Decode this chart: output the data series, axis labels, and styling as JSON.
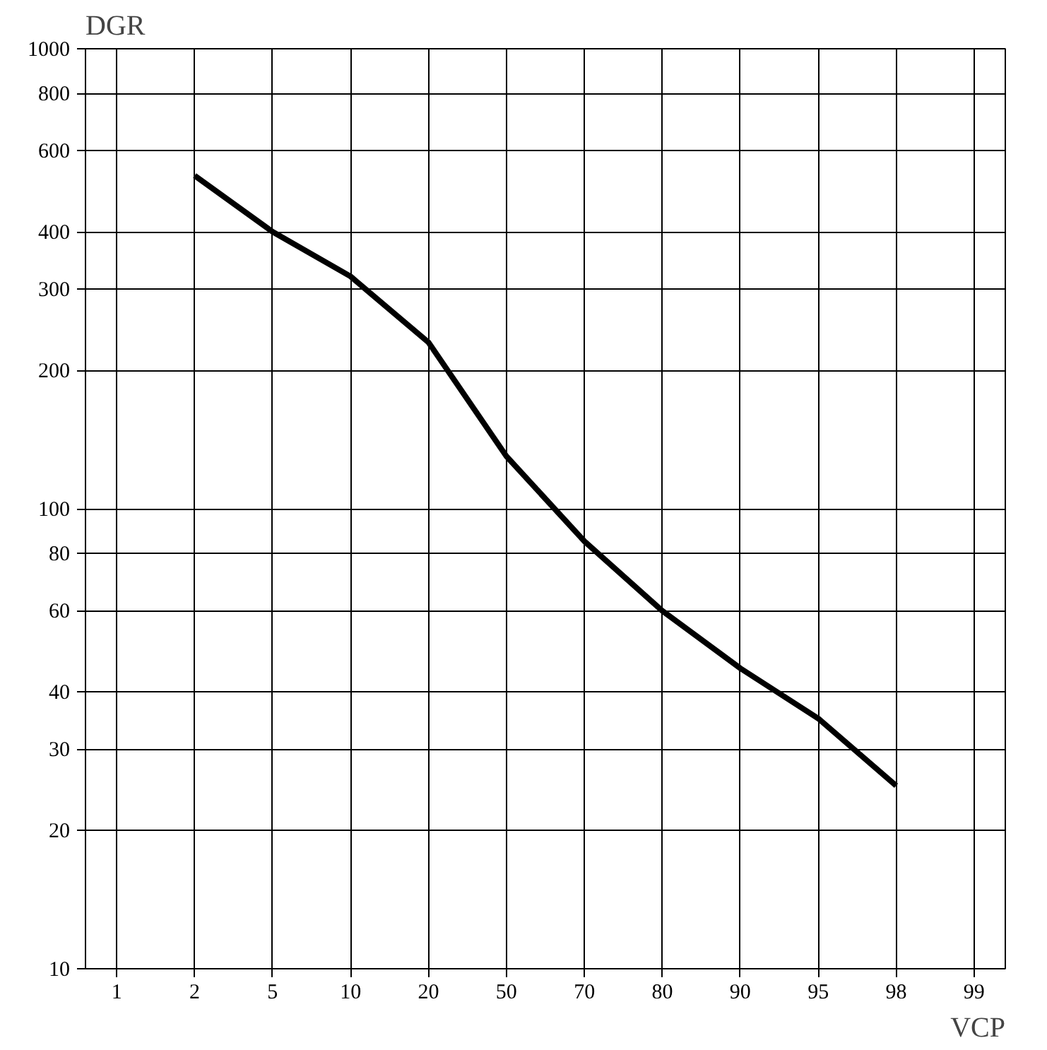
{
  "chart_data": {
    "type": "line",
    "xlabel": "VCP",
    "ylabel": "DGR",
    "categories": [
      "1",
      "2",
      "5",
      "10",
      "20",
      "50",
      "70",
      "80",
      "90",
      "95",
      "98",
      "99"
    ],
    "series": [
      {
        "color": "#000000",
        "values": [
          null,
          530,
          400,
          320,
          230,
          130,
          85,
          60,
          45,
          35,
          25,
          null
        ]
      }
    ],
    "ylim": [
      10,
      1000
    ],
    "yticks": [
      10,
      20,
      30,
      40,
      60,
      80,
      100,
      200,
      300,
      400,
      600,
      800,
      1000
    ],
    "log": "y",
    "grid": true,
    "marker": "none",
    "line_style": "solid"
  }
}
